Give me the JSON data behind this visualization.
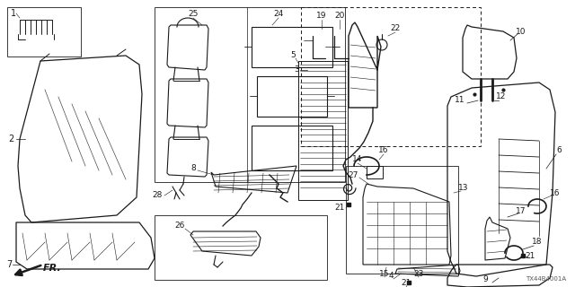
{
  "bg": "#f5f5f0",
  "lc": "#1a1a1a",
  "fig_w": 6.4,
  "fig_h": 3.2,
  "dpi": 100,
  "code": "TX44B4001A"
}
